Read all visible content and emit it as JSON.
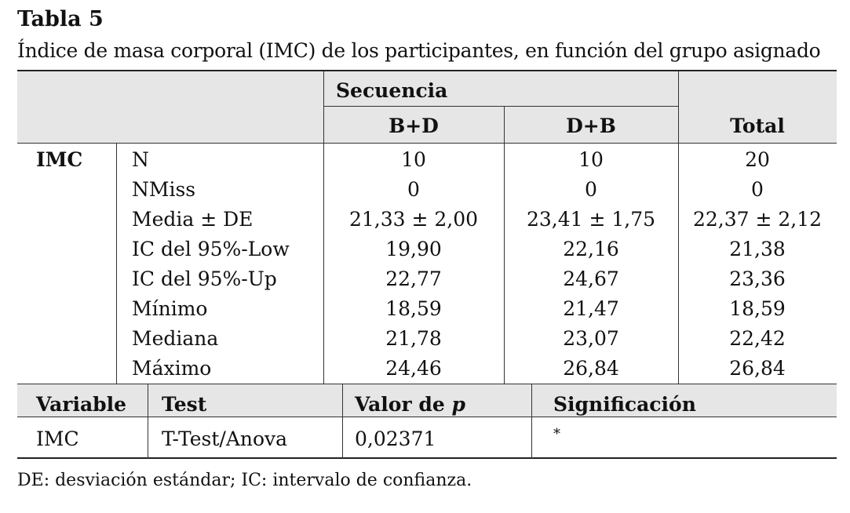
{
  "table_label": "Tabla 5",
  "caption": "Índice de masa corporal (IMC) de los participantes, en función del grupo asignado",
  "header": {
    "group_label": "Secuencia",
    "columns": [
      "B+D",
      "D+B"
    ],
    "total_label": "Total"
  },
  "stats": {
    "variable": "IMC",
    "rows": [
      {
        "label": "N",
        "values": [
          "10",
          "10",
          "20"
        ]
      },
      {
        "label": "NMiss",
        "values": [
          "0",
          "0",
          "0"
        ]
      },
      {
        "label": "Media ± DE",
        "values": [
          "21,33 ± 2,00",
          "23,41 ± 1,75",
          "22,37 ± 2,12"
        ]
      },
      {
        "label": "IC del 95%-Low",
        "values": [
          "19,90",
          "22,16",
          "21,38"
        ]
      },
      {
        "label": "IC del 95%-Up",
        "values": [
          "22,77",
          "24,67",
          "23,36"
        ]
      },
      {
        "label": "Mínimo",
        "values": [
          "18,59",
          "21,47",
          "18,59"
        ]
      },
      {
        "label": "Mediana",
        "values": [
          "21,78",
          "23,07",
          "22,42"
        ]
      },
      {
        "label": "Máximo",
        "values": [
          "24,46",
          "26,84",
          "26,84"
        ]
      }
    ]
  },
  "test": {
    "headers": [
      "Variable",
      "Test",
      "Valor de p",
      "Significación"
    ],
    "row": [
      "IMC",
      "T-Test/Anova",
      "0,02371",
      "*"
    ]
  },
  "footnote": "DE: desviación estándar; IC: intervalo de confianza."
}
